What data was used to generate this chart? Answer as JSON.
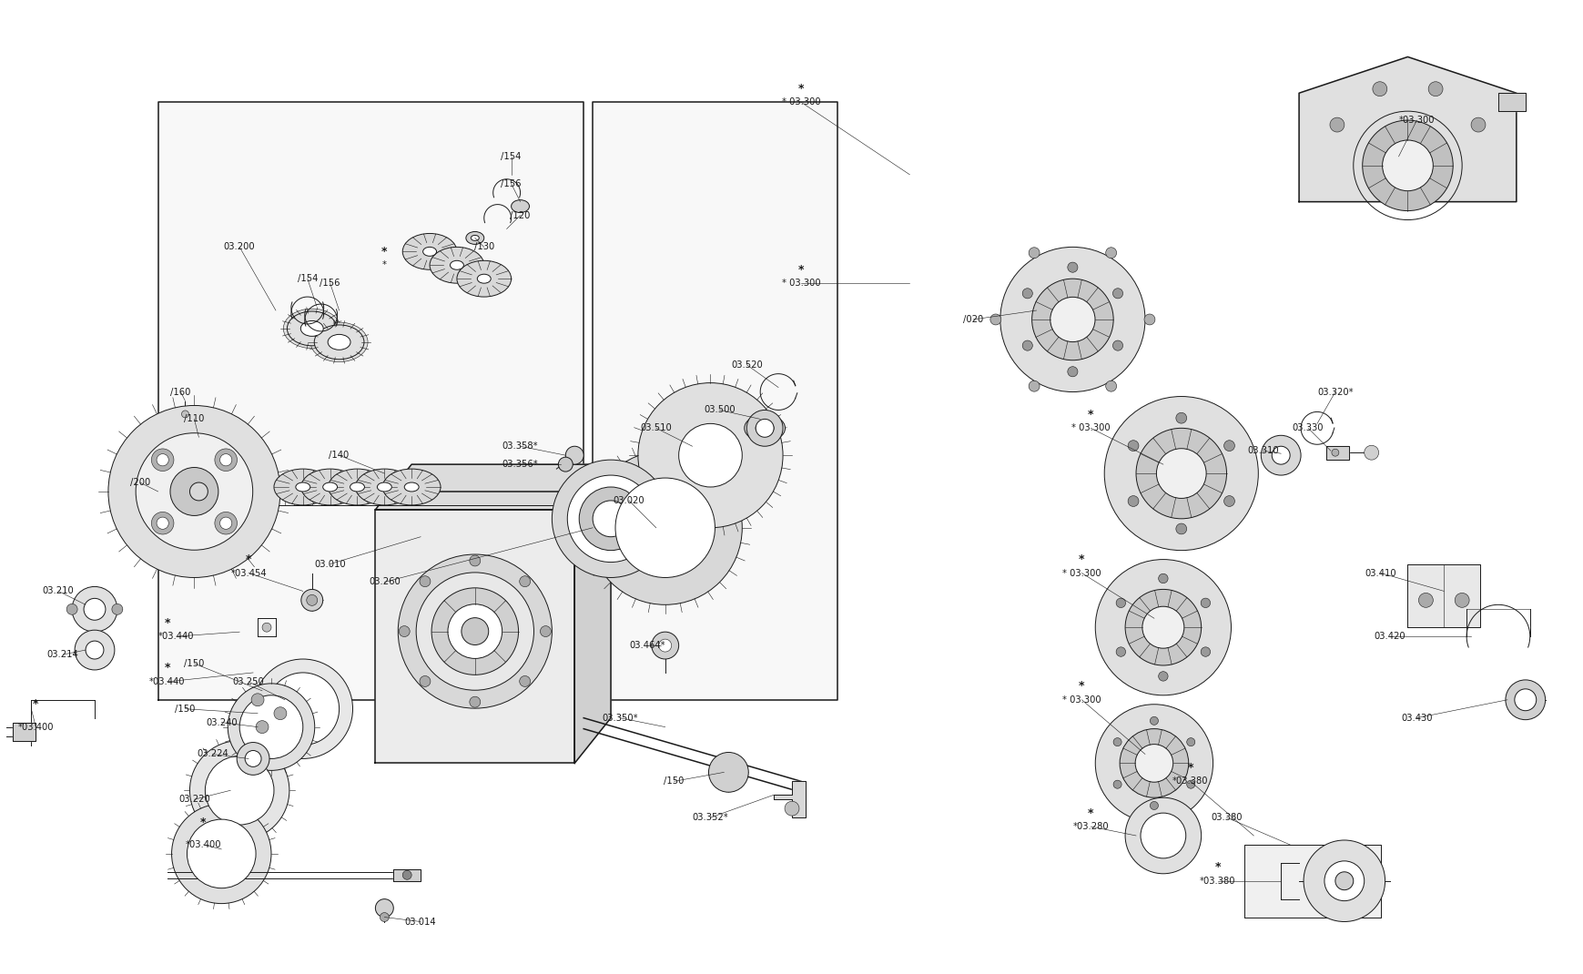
{
  "background_color": "#ffffff",
  "line_color": "#1a1a1a",
  "fig_width": 17.4,
  "fig_height": 10.7,
  "border_color": "#333333",
  "label_fontsize": 7.2,
  "title_fontsize": 9
}
